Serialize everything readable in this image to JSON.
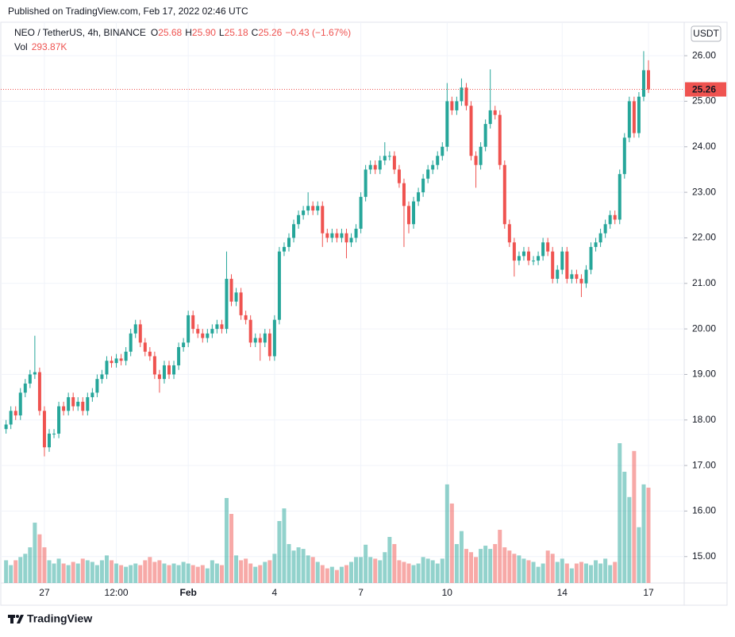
{
  "header": {
    "published": "Published on TradingView.com, Feb 17, 2022 02:46 UTC"
  },
  "footer": {
    "brand": "TradingView"
  },
  "chart_data": {
    "type": "candlestick",
    "symbol": "NEO / TetherUS, 4h, BINANCE",
    "ohlc_text": [
      [
        "O",
        "25.68"
      ],
      [
        "H",
        "25.90"
      ],
      [
        "L",
        "25.18"
      ],
      [
        "C",
        "25.26"
      ]
    ],
    "change_text": "−0.43 (−1.67%)",
    "vol_text": [
      "Vol",
      "293.87K"
    ],
    "currency": "USDT",
    "up_color": "#26a69a",
    "down_color": "#ef5350",
    "grid": true,
    "ylim": [
      14.42,
      26.7
    ],
    "yticks": [
      {
        "value": 15,
        "label": "15.00"
      },
      {
        "value": 16,
        "label": "16.00"
      },
      {
        "value": 17,
        "label": "17.00"
      },
      {
        "value": 18,
        "label": "18.00"
      },
      {
        "value": 19,
        "label": "19.00"
      },
      {
        "value": 20,
        "label": "20.00"
      },
      {
        "value": 21,
        "label": "21.00"
      },
      {
        "value": 22,
        "label": "22.00"
      },
      {
        "value": 23,
        "label": "23.00"
      },
      {
        "value": 24,
        "label": "24.00"
      },
      {
        "value": 25,
        "label": "25.00"
      },
      {
        "value": 26,
        "label": "26.00"
      }
    ],
    "categories": [
      null,
      null,
      null,
      null,
      null,
      null,
      null,
      null,
      "27",
      null,
      null,
      null,
      null,
      null,
      null,
      null,
      null,
      null,
      null,
      null,
      null,
      null,
      null,
      "12:00",
      null,
      null,
      null,
      null,
      null,
      null,
      null,
      null,
      null,
      null,
      null,
      null,
      null,
      null,
      "Feb",
      null,
      null,
      null,
      null,
      null,
      null,
      null,
      null,
      null,
      null,
      null,
      null,
      null,
      null,
      null,
      null,
      null,
      "4",
      null,
      null,
      null,
      null,
      null,
      null,
      null,
      null,
      null,
      null,
      null,
      null,
      null,
      null,
      null,
      null,
      null,
      "7",
      null,
      null,
      null,
      null,
      null,
      null,
      null,
      null,
      null,
      null,
      null,
      null,
      null,
      null,
      null,
      null,
      null,
      "10",
      null,
      null,
      null,
      null,
      null,
      null,
      null,
      null,
      null,
      null,
      null,
      null,
      null,
      null,
      null,
      null,
      null,
      null,
      null,
      null,
      null,
      null,
      null,
      "14",
      null,
      null,
      null,
      null,
      null,
      null,
      null,
      null,
      null,
      null,
      null,
      null,
      null,
      null,
      null,
      null,
      null,
      "17"
    ],
    "open": [
      17.8,
      17.9,
      18.2,
      18.1,
      18.6,
      18.8,
      19.0,
      19.05,
      18.2,
      17.4,
      17.7,
      17.7,
      18.3,
      18.2,
      18.5,
      18.3,
      18.4,
      18.2,
      18.5,
      18.6,
      18.9,
      19.0,
      19.3,
      19.25,
      19.35,
      19.3,
      19.5,
      19.9,
      20.1,
      19.7,
      19.5,
      19.4,
      19.0,
      18.9,
      19.2,
      19.0,
      19.2,
      19.6,
      19.7,
      20.3,
      20.0,
      19.9,
      19.8,
      19.9,
      20.0,
      20.1,
      20.0,
      21.1,
      20.6,
      20.8,
      20.3,
      20.2,
      19.7,
      19.8,
      19.7,
      19.9,
      19.4,
      20.2,
      21.7,
      21.8,
      22.0,
      22.3,
      22.5,
      22.6,
      22.7,
      22.6,
      22.7,
      22.1,
      22.0,
      22.1,
      22.0,
      22.1,
      21.9,
      22.0,
      22.2,
      22.9,
      23.5,
      23.6,
      23.5,
      23.7,
      23.8,
      23.8,
      23.5,
      23.2,
      22.7,
      22.3,
      22.8,
      23.0,
      23.3,
      23.5,
      23.6,
      23.8,
      24.0,
      25.0,
      24.8,
      25.0,
      25.3,
      24.9,
      23.8,
      23.6,
      24.0,
      24.5,
      24.8,
      24.7,
      23.6,
      22.3,
      21.9,
      21.5,
      21.6,
      21.7,
      21.5,
      21.5,
      21.6,
      21.9,
      21.7,
      21.1,
      21.3,
      21.7,
      21.1,
      21.2,
      21.1,
      21.0,
      21.3,
      21.8,
      21.9,
      22.1,
      22.3,
      22.5,
      22.4,
      23.4,
      24.2,
      25.0,
      24.3,
      25.1,
      25.68
    ],
    "high": [
      18.0,
      18.3,
      18.3,
      18.7,
      18.9,
      19.1,
      19.85,
      19.15,
      18.3,
      17.8,
      17.8,
      18.4,
      18.4,
      18.6,
      18.6,
      18.5,
      18.5,
      18.6,
      18.7,
      19.0,
      19.1,
      19.4,
      19.4,
      19.45,
      19.45,
      19.6,
      20.0,
      20.2,
      20.2,
      19.8,
      19.6,
      19.5,
      19.1,
      19.3,
      19.3,
      19.3,
      19.7,
      19.8,
      20.4,
      20.4,
      20.1,
      20.0,
      20.0,
      20.1,
      20.2,
      20.2,
      21.7,
      21.2,
      20.9,
      20.9,
      20.4,
      20.3,
      19.9,
      19.9,
      20.0,
      20.0,
      20.3,
      21.8,
      21.9,
      22.1,
      22.4,
      22.6,
      22.7,
      23.0,
      22.8,
      22.8,
      22.8,
      22.2,
      22.2,
      22.2,
      22.2,
      22.2,
      22.1,
      22.3,
      23.0,
      23.6,
      23.7,
      23.7,
      23.8,
      24.1,
      23.9,
      23.9,
      23.6,
      23.3,
      22.8,
      22.9,
      23.1,
      23.4,
      23.6,
      23.7,
      23.9,
      24.1,
      25.4,
      25.1,
      25.1,
      25.5,
      25.4,
      25.0,
      23.9,
      24.1,
      24.6,
      25.7,
      24.9,
      24.8,
      23.7,
      22.4,
      22.0,
      21.7,
      21.8,
      21.8,
      21.6,
      21.7,
      22.0,
      22.0,
      21.8,
      21.4,
      21.8,
      21.8,
      21.3,
      21.3,
      21.2,
      21.4,
      21.9,
      22.0,
      22.2,
      22.4,
      22.6,
      22.6,
      23.5,
      24.3,
      25.1,
      25.1,
      25.2,
      26.1,
      25.9
    ],
    "low": [
      17.7,
      17.8,
      18.0,
      18.0,
      18.5,
      18.7,
      18.9,
      18.1,
      17.2,
      17.3,
      17.6,
      17.6,
      18.1,
      18.1,
      18.2,
      18.2,
      18.1,
      18.1,
      18.4,
      18.5,
      18.8,
      18.9,
      19.15,
      19.15,
      19.2,
      19.2,
      19.4,
      19.8,
      19.6,
      19.4,
      19.3,
      18.9,
      18.6,
      18.8,
      18.9,
      18.9,
      19.1,
      19.5,
      19.6,
      19.9,
      19.8,
      19.7,
      19.7,
      19.8,
      19.9,
      19.9,
      19.9,
      20.5,
      20.5,
      20.2,
      20.1,
      19.6,
      19.6,
      19.3,
      19.6,
      19.3,
      19.3,
      20.1,
      21.6,
      21.7,
      21.9,
      22.2,
      22.4,
      22.5,
      22.5,
      22.5,
      21.8,
      21.9,
      21.9,
      21.9,
      21.9,
      21.55,
      21.8,
      21.9,
      22.1,
      22.8,
      23.4,
      23.4,
      23.4,
      23.6,
      23.7,
      23.4,
      23.1,
      21.8,
      22.1,
      22.2,
      22.7,
      22.9,
      23.2,
      23.4,
      23.5,
      23.7,
      23.9,
      24.7,
      24.7,
      24.9,
      24.8,
      23.7,
      23.1,
      23.5,
      23.9,
      24.4,
      24.6,
      23.5,
      22.2,
      21.8,
      21.15,
      21.4,
      21.5,
      21.4,
      21.4,
      21.4,
      21.5,
      21.6,
      21.0,
      21.0,
      21.2,
      21.0,
      21.0,
      21.0,
      20.7,
      20.9,
      21.2,
      21.7,
      21.8,
      22.0,
      22.2,
      22.3,
      22.3,
      23.3,
      24.1,
      24.2,
      24.2,
      25.0,
      25.18
    ],
    "close": [
      17.9,
      18.2,
      18.1,
      18.6,
      18.8,
      19.0,
      19.05,
      18.2,
      17.4,
      17.7,
      17.7,
      18.3,
      18.2,
      18.5,
      18.3,
      18.4,
      18.2,
      18.5,
      18.6,
      18.9,
      19.0,
      19.3,
      19.25,
      19.35,
      19.3,
      19.5,
      19.9,
      20.1,
      19.7,
      19.5,
      19.4,
      19.0,
      18.9,
      19.2,
      19.0,
      19.2,
      19.6,
      19.7,
      20.3,
      20.0,
      19.9,
      19.8,
      19.9,
      20.0,
      20.1,
      20.0,
      21.1,
      20.6,
      20.8,
      20.3,
      20.2,
      19.7,
      19.8,
      19.7,
      19.9,
      19.4,
      20.2,
      21.7,
      21.8,
      22.0,
      22.3,
      22.5,
      22.6,
      22.7,
      22.6,
      22.7,
      22.1,
      22.0,
      22.1,
      22.0,
      22.1,
      21.9,
      22.0,
      22.2,
      22.9,
      23.5,
      23.6,
      23.5,
      23.7,
      23.8,
      23.8,
      23.5,
      23.2,
      22.7,
      22.3,
      22.8,
      23.0,
      23.3,
      23.5,
      23.6,
      23.8,
      24.0,
      25.0,
      24.8,
      25.0,
      25.3,
      24.9,
      23.8,
      23.6,
      24.0,
      24.5,
      24.8,
      24.7,
      23.6,
      22.3,
      21.9,
      21.5,
      21.6,
      21.7,
      21.5,
      21.5,
      21.6,
      21.9,
      21.7,
      21.1,
      21.3,
      21.7,
      21.1,
      21.2,
      21.1,
      21.0,
      21.3,
      21.8,
      21.9,
      22.1,
      22.3,
      22.5,
      22.4,
      23.4,
      24.2,
      25.0,
      24.3,
      25.1,
      25.68,
      25.26
    ],
    "volume": [
      70,
      55,
      70,
      80,
      90,
      110,
      186,
      150,
      110,
      70,
      60,
      75,
      60,
      55,
      65,
      60,
      75,
      70,
      65,
      55,
      70,
      85,
      70,
      60,
      55,
      50,
      55,
      60,
      55,
      70,
      80,
      65,
      70,
      60,
      55,
      60,
      55,
      65,
      60,
      55,
      50,
      55,
      45,
      70,
      60,
      55,
      262,
      213,
      85,
      70,
      75,
      60,
      50,
      55,
      65,
      70,
      90,
      191,
      230,
      120,
      100,
      110,
      105,
      85,
      80,
      65,
      55,
      45,
      50,
      40,
      50,
      55,
      65,
      80,
      80,
      118,
      80,
      75,
      70,
      95,
      142,
      120,
      70,
      65,
      60,
      55,
      60,
      80,
      75,
      70,
      60,
      75,
      304,
      245,
      120,
      160,
      105,
      95,
      80,
      105,
      115,
      105,
      120,
      164,
      110,
      100,
      90,
      85,
      75,
      70,
      65,
      50,
      60,
      100,
      90,
      65,
      75,
      60,
      45,
      60,
      65,
      60,
      55,
      70,
      60,
      75,
      55,
      65,
      431,
      343,
      265,
      407,
      172,
      304,
      293.87
    ]
  }
}
